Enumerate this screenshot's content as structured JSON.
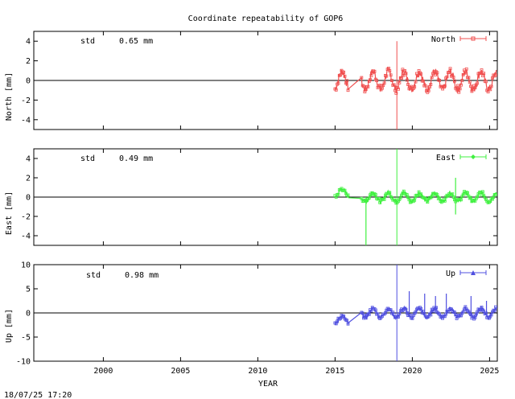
{
  "chart_data": {
    "type": "line",
    "title": "Coordinate repeatability of GOP6",
    "xlabel": "YEAR",
    "timestamp": "18/07/25 17:20",
    "x_ticks": [
      2000,
      2005,
      2010,
      2015,
      2020,
      2025
    ],
    "xlim": [
      1995.5,
      2025.5
    ],
    "panels": [
      {
        "name": "North",
        "ylabel": "North [mm]",
        "ylim": [
          -5,
          5
        ],
        "yticks": [
          4,
          2,
          0,
          -2,
          -4
        ],
        "std_label": "std",
        "std_value": "0.65 mm",
        "legend": "North",
        "color": "#f05050",
        "amplitude": 0.9,
        "base": 0.0,
        "pre_2017_base": 0.0,
        "spike": {
          "x": 2019.0,
          "min": -5.0,
          "max": 4.0
        },
        "bumps": []
      },
      {
        "name": "East",
        "ylabel": "East [mm]",
        "ylim": [
          -5,
          5
        ],
        "yticks": [
          4,
          2,
          0,
          -2,
          -4
        ],
        "std_label": "std",
        "std_value": "0.49 mm",
        "legend": "East",
        "color": "#40f040",
        "amplitude": 0.45,
        "base": 0.0,
        "pre_2017_base": 0.4,
        "spike": {
          "x": 2019.0,
          "min": -5.0,
          "max": 5.0
        },
        "bumps": [
          {
            "x": 2017.0,
            "y": -5.0
          },
          {
            "x": 2022.8,
            "y": -1.8
          },
          {
            "x": 2022.8,
            "y": 2.0
          }
        ]
      },
      {
        "name": "Up",
        "ylabel": "Up [mm]",
        "ylim": [
          -10,
          10
        ],
        "yticks": [
          10,
          5,
          0,
          -5,
          -10
        ],
        "std_label": "std",
        "std_value": "0.98 mm",
        "legend": "Up",
        "color": "#5050e0",
        "amplitude": 0.9,
        "base": 0.0,
        "pre_2017_base": -1.5,
        "spike": {
          "x": 2019.0,
          "min": -10.0,
          "max": 10.0
        },
        "bumps": [
          {
            "x": 2019.8,
            "y": 4.5
          },
          {
            "x": 2020.8,
            "y": 4.0
          },
          {
            "x": 2021.5,
            "y": 3.5
          },
          {
            "x": 2022.2,
            "y": 4.0
          },
          {
            "x": 2023.8,
            "y": 3.5
          },
          {
            "x": 2024.8,
            "y": 2.5
          }
        ]
      }
    ]
  }
}
